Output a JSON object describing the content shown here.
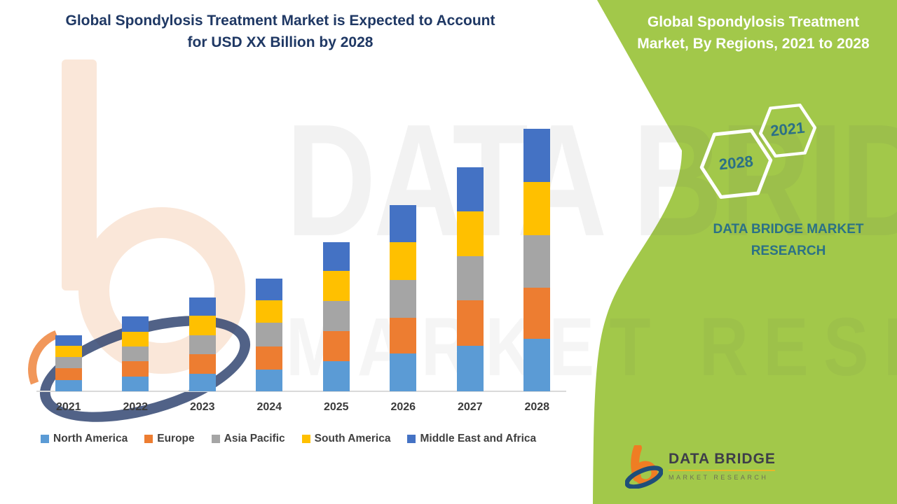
{
  "left_section": {
    "title_lines": [
      "Global Spondylosis Treatment Market is Expected to Account",
      "for USD XX Billion by 2028"
    ],
    "title_color": "#1f3864"
  },
  "chart_data": {
    "type": "bar",
    "stacked": true,
    "title": "Global Spondylosis Treatment Market is Expected to Account for USD XX Billion by 2028",
    "categories": [
      "2021",
      "2022",
      "2023",
      "2024",
      "2025",
      "2026",
      "2027",
      "2028"
    ],
    "series": [
      {
        "name": "North America",
        "color": "#5B9BD5",
        "values": [
          16.0,
          21.4,
          25.4,
          31.0,
          43.3,
          54.3,
          65.0,
          75.0
        ]
      },
      {
        "name": "Europe",
        "color": "#ED7D31",
        "values": [
          16.6,
          21.6,
          28.0,
          32.7,
          42.3,
          50.7,
          65.0,
          73.3
        ]
      },
      {
        "name": "Asia Pacific",
        "color": "#A5A5A5",
        "values": [
          16.0,
          20.7,
          27.0,
          34.0,
          43.3,
          54.3,
          63.3,
          75.0
        ]
      },
      {
        "name": "South America",
        "color": "#FFC000",
        "values": [
          16.4,
          21.7,
          27.6,
          32.7,
          42.7,
          53.3,
          63.3,
          75.7
        ]
      },
      {
        "name": "Middle East and Africa",
        "color": "#4472C4",
        "values": [
          15.3,
          21.6,
          26.4,
          31.0,
          41.7,
          53.4,
          63.4,
          76.0
        ]
      }
    ],
    "stack_totals": [
      80.3,
      107.0,
      134.4,
      161.4,
      213.3,
      266.0,
      320.0,
      375.0
    ],
    "units": "relative units (actual figures masked as USD XX Billion)",
    "value_axis_visible": false,
    "grid": false,
    "legend_position": "bottom",
    "xlabel": "",
    "ylabel": ""
  },
  "watermark": {
    "line1": "DATA BRIDGE",
    "line2": "MARKET RESEARCH"
  },
  "right_panel": {
    "bg_color": "#a2c84a",
    "title_lines": [
      "Global Spondylosis Treatment",
      "Market, By Regions, 2021 to 2028"
    ],
    "hexagons": [
      {
        "year": "2021"
      },
      {
        "year": "2028"
      }
    ],
    "subtitle_lines": [
      "DATA BRIDGE MARKET",
      "RESEARCH"
    ],
    "subtitle_color": "#2b7186",
    "logo": {
      "name": "DATA BRIDGE",
      "tagline": "MARKET   RESEARCH"
    }
  }
}
